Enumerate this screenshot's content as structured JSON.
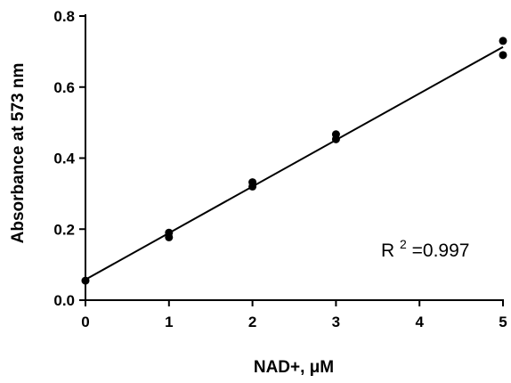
{
  "chart_data": {
    "type": "scatter",
    "xlabel": "NAD+, μM",
    "ylabel": "Absorbance at 573 nm",
    "xlim": [
      0,
      5
    ],
    "ylim": [
      0,
      0.8
    ],
    "xticks": [
      "0",
      "1",
      "2",
      "3",
      "4",
      "5"
    ],
    "yticks": [
      "0.0",
      "0.2",
      "0.4",
      "0.6",
      "0.8"
    ],
    "grid": false,
    "series": [
      {
        "points": [
          {
            "x": 0,
            "y": 0.055
          },
          {
            "x": 1,
            "y": 0.19
          },
          {
            "x": 1,
            "y": 0.177
          },
          {
            "x": 2,
            "y": 0.332
          },
          {
            "x": 2,
            "y": 0.32
          },
          {
            "x": 3,
            "y": 0.467
          },
          {
            "x": 3,
            "y": 0.453
          },
          {
            "x": 5,
            "y": 0.73
          },
          {
            "x": 5,
            "y": 0.69
          }
        ],
        "color": "#000000"
      }
    ],
    "fit_line": {
      "x": [
        0,
        5
      ],
      "y": [
        0.058,
        0.713
      ]
    },
    "annotation": {
      "base": "R",
      "superscript": "2",
      "rest": "=0.997"
    }
  }
}
